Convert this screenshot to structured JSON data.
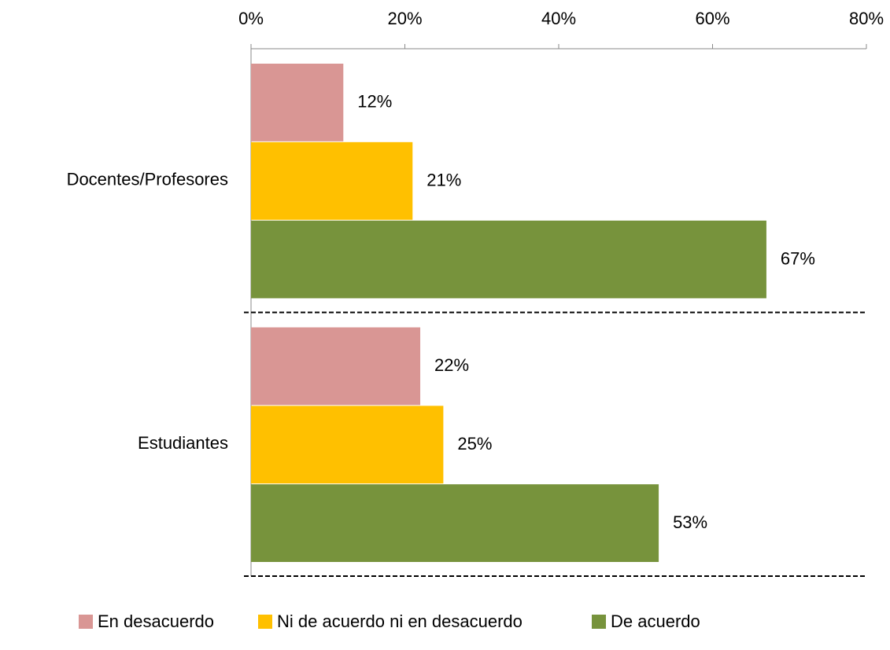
{
  "chart_data": {
    "type": "bar",
    "orientation": "horizontal",
    "categories": [
      "Docentes/Profesores",
      "Estudiantes"
    ],
    "series": [
      {
        "name": "En desacuerdo",
        "color": "#d99694",
        "values": [
          12,
          22
        ],
        "value_labels": [
          "12%",
          "22%"
        ]
      },
      {
        "name": "Ni de acuerdo ni en desacuerdo",
        "color": "#ffc000",
        "values": [
          21,
          25
        ],
        "value_labels": [
          "21%",
          "25%"
        ]
      },
      {
        "name": "De acuerdo",
        "color": "#77933c",
        "values": [
          67,
          53
        ],
        "value_labels": [
          "67%",
          "53%"
        ]
      }
    ],
    "xlim": [
      0,
      80
    ],
    "xticks": [
      {
        "value": 0,
        "label": "0%"
      },
      {
        "value": 20,
        "label": "20%"
      },
      {
        "value": 40,
        "label": "40%"
      },
      {
        "value": 60,
        "label": "60%"
      },
      {
        "value": 80,
        "label": "80%"
      }
    ],
    "legend": "bottom"
  }
}
